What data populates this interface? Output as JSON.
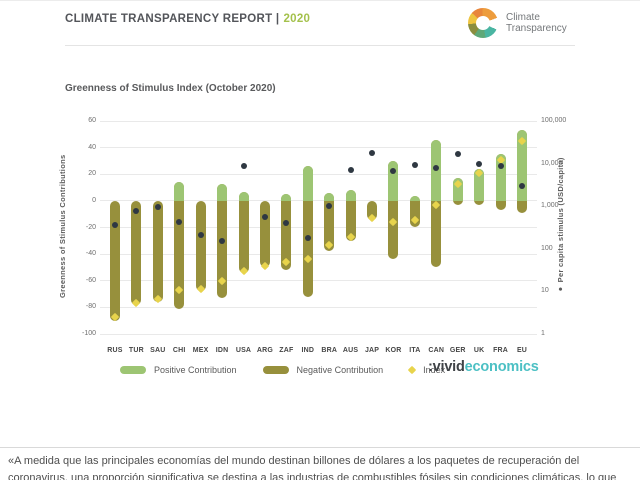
{
  "header": {
    "report_title": "CLIMATE TRANSPARENCY REPORT |",
    "report_year": "2020"
  },
  "logo": {
    "line1": "Climate",
    "line2": "Transparency"
  },
  "chart": {
    "title": "Greenness of Stimulus Index (October 2020)",
    "y_left_label": "Greenness of Stimulus Contributions",
    "y_right_label": "● Per capita stimulus (USD/capita)",
    "legend": [
      {
        "label": "Positive Contribution",
        "color": "#9dc573",
        "marker": "pill"
      },
      {
        "label": "Negative Contribution",
        "color": "#97903c",
        "marker": "pill"
      },
      {
        "label": "Index",
        "color": "#e8d44c",
        "marker": "diamond"
      }
    ]
  },
  "brand": {
    "prefix": ":vivid",
    "suffix": "economics"
  },
  "footer": {
    "quote": "«A medida que las principales economías del mundo destinan billones de dólares a los paquetes de recuperación del coronavirus, una proporción significativa se destina a las industrias de combustibles fósiles sin condiciones climáticas, lo que"
  },
  "chart_data": {
    "type": "bar",
    "title": "Greenness of Stimulus Index (October 2020)",
    "categories": [
      "RUS",
      "TUR",
      "SAU",
      "CHI",
      "MEX",
      "IDN",
      "USA",
      "ARG",
      "ZAF",
      "IND",
      "BRA",
      "AUS",
      "JAP",
      "KOR",
      "ITA",
      "CAN",
      "GER",
      "UK",
      "FRA",
      "EU"
    ],
    "series": [
      {
        "name": "Positive Contribution",
        "axis": "left",
        "values": [
          0,
          0,
          0,
          14,
          0,
          13,
          7,
          0,
          5,
          26,
          6,
          8,
          0,
          30,
          4,
          46,
          17,
          24,
          35,
          53
        ]
      },
      {
        "name": "Negative Contribution",
        "axis": "left",
        "values": [
          -90,
          -78,
          -76,
          -81,
          -68,
          -73,
          -54,
          -50,
          -52,
          -72,
          -38,
          -30,
          -14,
          -44,
          -20,
          -50,
          -3,
          -3,
          -7,
          -9
        ]
      },
      {
        "name": "Index",
        "axis": "left",
        "values": [
          -87,
          -77,
          -74,
          -67,
          -66,
          -60,
          -53,
          -49,
          -46,
          -44,
          -33,
          -27,
          -13,
          -16,
          -14,
          -3,
          13,
          21,
          31,
          45
        ]
      },
      {
        "name": "Per capita stimulus (USD/capita)",
        "axis": "right",
        "values": [
          360,
          790,
          950,
          420,
          210,
          150,
          9000,
          550,
          400,
          180,
          1000,
          7000,
          18000,
          6600,
          9200,
          7800,
          16600,
          9700,
          8900,
          3000
        ]
      }
    ],
    "xlabel": "",
    "ylabel": "Greenness of Stimulus Contributions",
    "y_left": {
      "ticks": [
        60,
        40,
        20,
        0,
        -20,
        -40,
        -60,
        -80,
        -100
      ],
      "range": [
        -100,
        60
      ],
      "grid": true
    },
    "y_right": {
      "label": "Per capita stimulus (USD/capita)",
      "scale": "log",
      "ticks": [
        "100,000",
        "10,000",
        "1,000",
        "100",
        "10",
        "1"
      ],
      "range": [
        1,
        100000
      ]
    },
    "legend_position": "bottom",
    "colors": {
      "positive": "#9dc573",
      "negative": "#97903c",
      "index": "#e8d44c",
      "dot": "#2f3842"
    }
  }
}
